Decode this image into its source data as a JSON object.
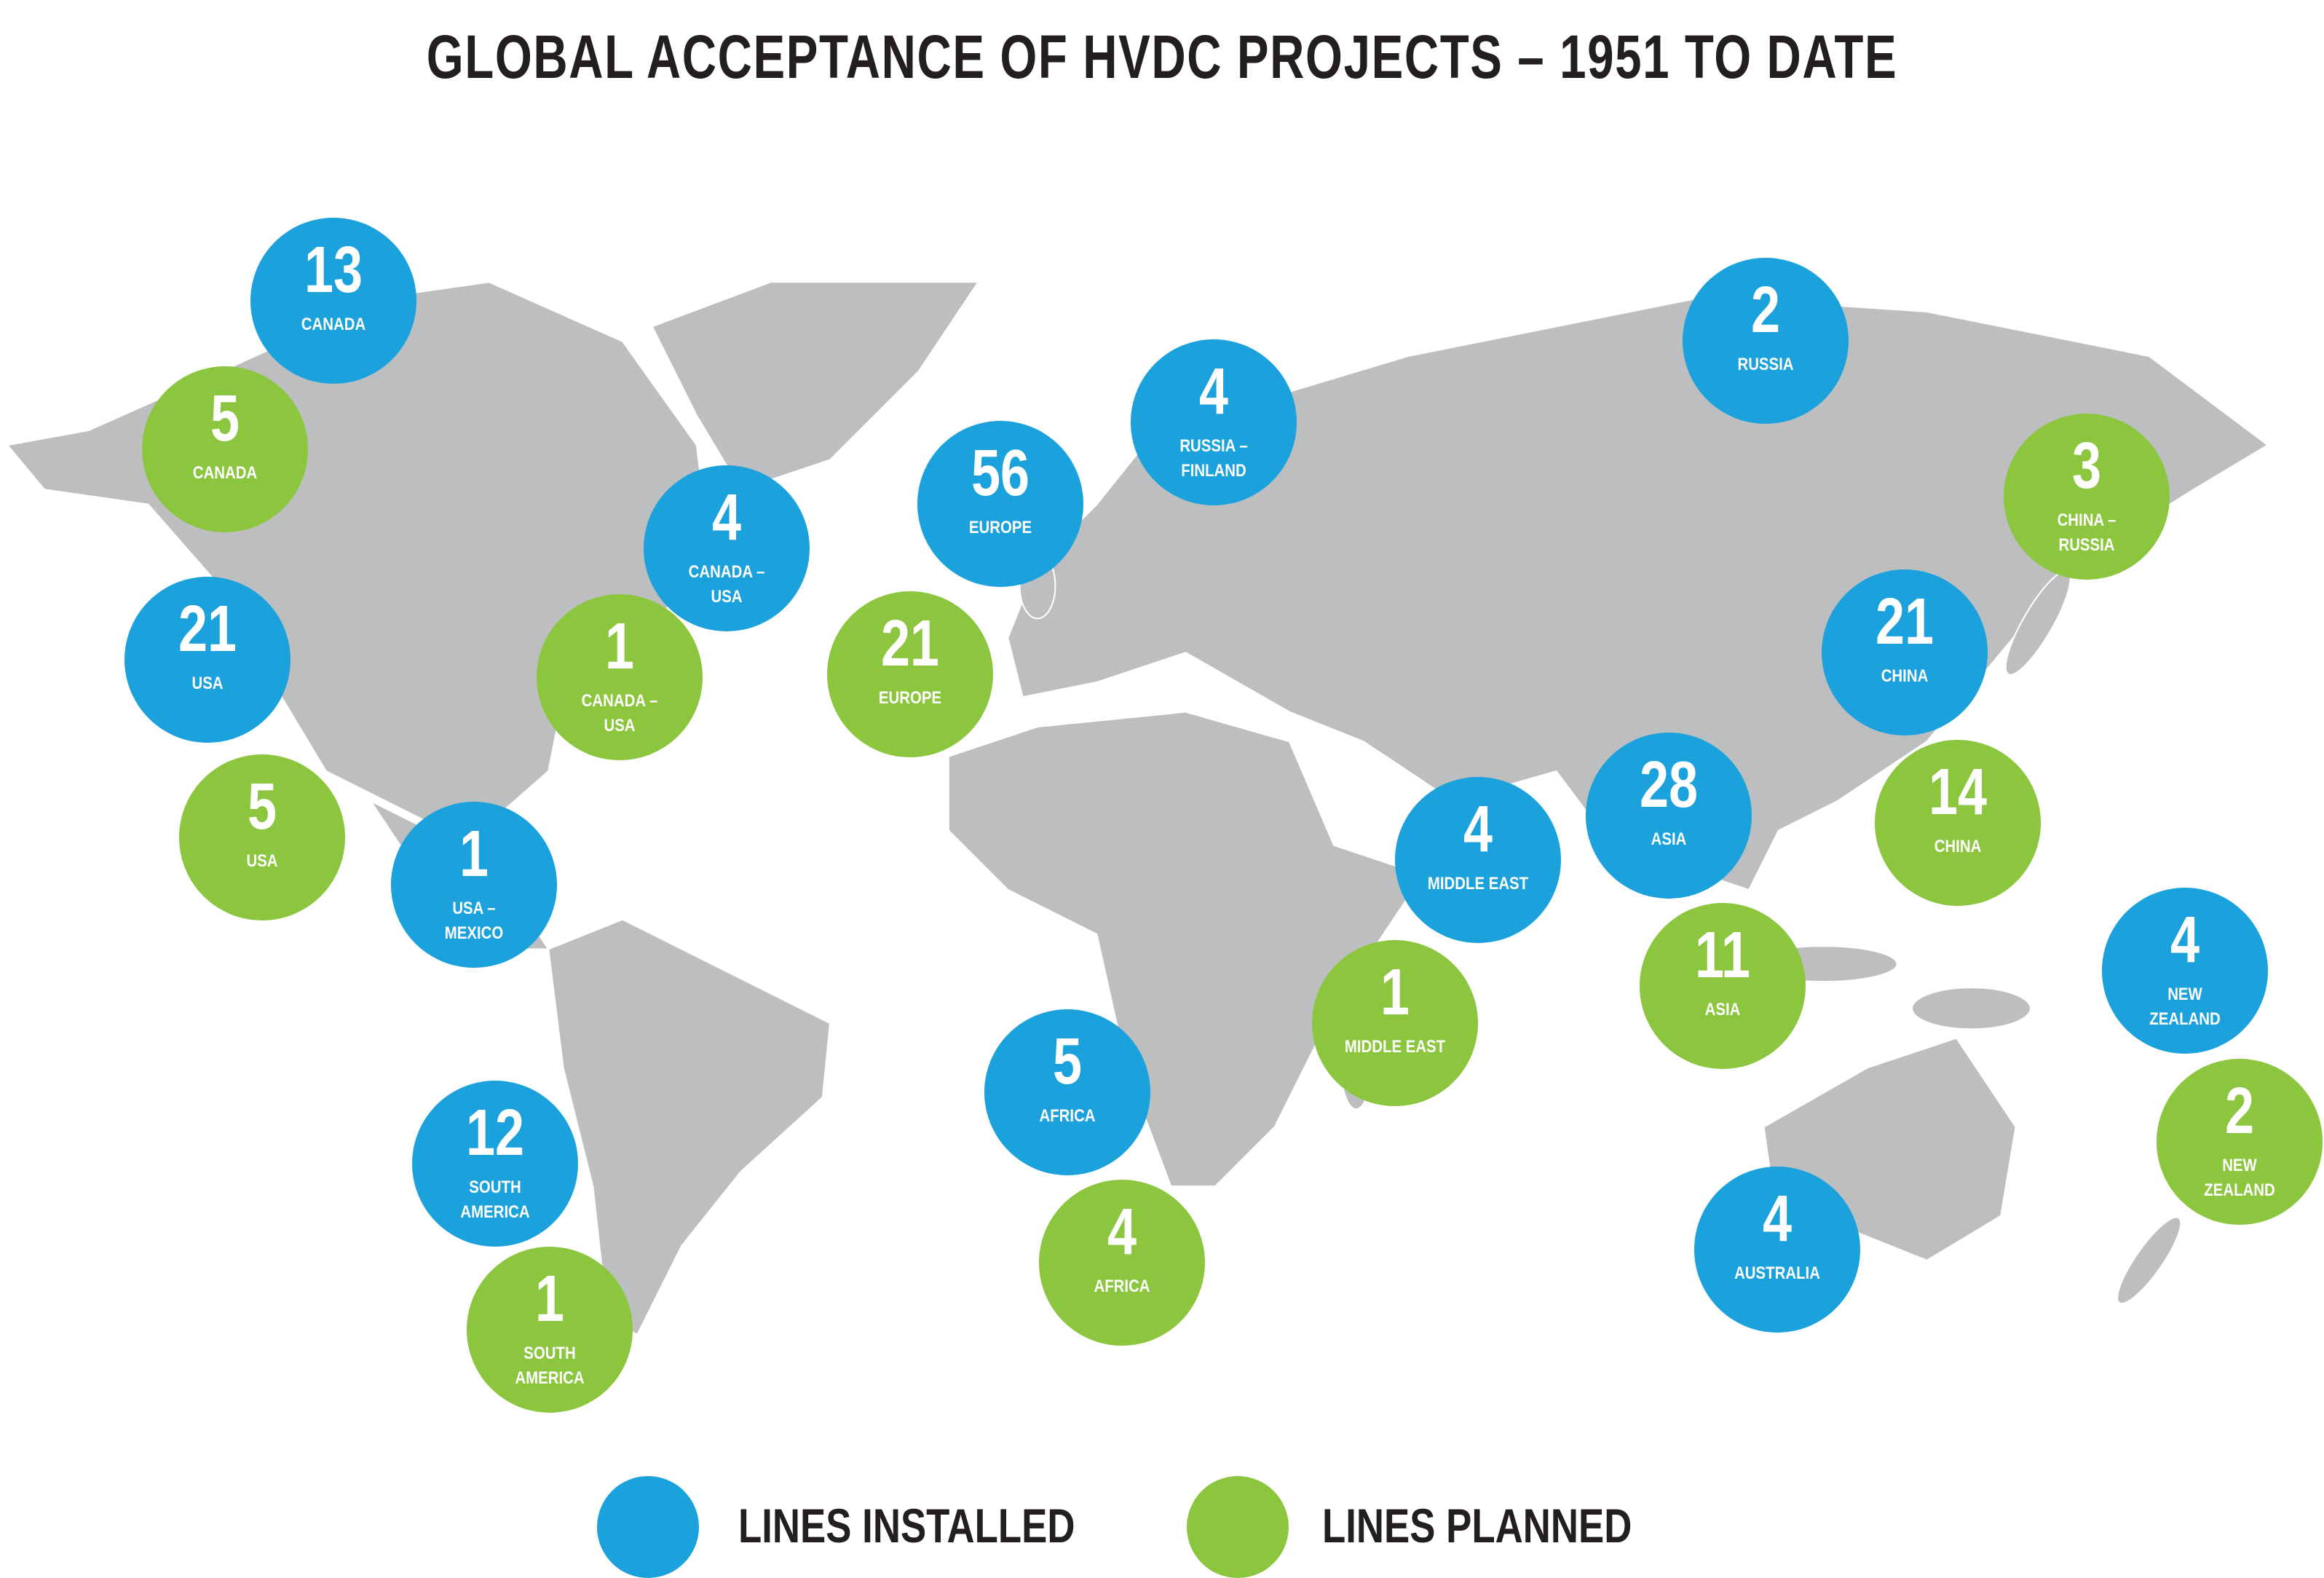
{
  "title": "GLOBAL ACCEPTANCE OF HVDC PROJECTS – 1951 TO DATE",
  "groups": [
    {
      "label": "LINES INSTALLED",
      "color": "#1ba1dc",
      "bubbles": [
        {
          "value": 13,
          "label": "CANADA"
        },
        {
          "value": 21,
          "label": "USA"
        },
        {
          "value": 4,
          "label": "CANADA – USA"
        },
        {
          "value": 1,
          "label": "USA – MEXICO"
        },
        {
          "value": 12,
          "label": "SOUTH AMERICA"
        },
        {
          "value": 56,
          "label": "EUROPE"
        },
        {
          "value": 4,
          "label": "RUSSIA – FINLAND"
        },
        {
          "value": 2,
          "label": "RUSSIA"
        },
        {
          "value": 21,
          "label": "CHINA"
        },
        {
          "value": 28,
          "label": "ASIA"
        },
        {
          "value": 4,
          "label": "MIDDLE EAST"
        },
        {
          "value": 5,
          "label": "AFRICA"
        },
        {
          "value": 4,
          "label": "AUSTRALIA"
        },
        {
          "value": 4,
          "label": "NEW ZEALAND"
        }
      ]
    },
    {
      "label": "LINES PLANNED",
      "color": "#8cc63f",
      "bubbles": [
        {
          "value": 5,
          "label": "CANADA"
        },
        {
          "value": 1,
          "label": "CANADA – USA"
        },
        {
          "value": 5,
          "label": "USA"
        },
        {
          "value": 1,
          "label": "SOUTH AMERICA"
        },
        {
          "value": 21,
          "label": "EUROPE"
        },
        {
          "value": 1,
          "label": "MIDDLE EAST"
        },
        {
          "value": 4,
          "label": "AFRICA"
        },
        {
          "value": 11,
          "label": "ASIA"
        },
        {
          "value": 14,
          "label": "CHINA"
        },
        {
          "value": 3,
          "label": "CHINA – RUSSIA"
        },
        {
          "value": 2,
          "label": "NEW ZEALAND"
        }
      ]
    }
  ]
}
